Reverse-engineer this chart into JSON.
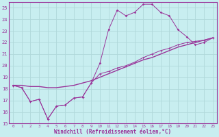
{
  "xlabel": "Windchill (Refroidissement éolien,°C)",
  "bg_color": "#c8eef0",
  "grid_color": "#b0d8da",
  "line_color": "#993399",
  "xlim": [
    -0.5,
    23.5
  ],
  "ylim": [
    15,
    25.5
  ],
  "xticks": [
    0,
    1,
    2,
    3,
    4,
    5,
    6,
    7,
    8,
    9,
    10,
    11,
    12,
    13,
    14,
    15,
    16,
    17,
    18,
    19,
    20,
    21,
    22,
    23
  ],
  "yticks": [
    15,
    16,
    17,
    18,
    19,
    20,
    21,
    22,
    23,
    24,
    25
  ],
  "line1_x": [
    0,
    1,
    2,
    3,
    4,
    5,
    6,
    7,
    8,
    9,
    10,
    11,
    12,
    13,
    14,
    15,
    16,
    17,
    18,
    19,
    20,
    21,
    22,
    23
  ],
  "line1_y": [
    18.3,
    18.1,
    16.9,
    17.1,
    15.4,
    16.5,
    16.6,
    17.2,
    17.3,
    18.5,
    20.2,
    23.1,
    24.8,
    24.3,
    24.6,
    25.3,
    25.3,
    24.6,
    24.3,
    23.1,
    22.5,
    21.8,
    22.0,
    22.4
  ],
  "line2_x": [
    0,
    1,
    2,
    3,
    4,
    5,
    6,
    7,
    8,
    9,
    10,
    11,
    12,
    13,
    14,
    15,
    16,
    17,
    18,
    19,
    20,
    21,
    22,
    23
  ],
  "line2_y": [
    18.3,
    18.1,
    16.9,
    17.1,
    15.4,
    16.5,
    16.6,
    17.2,
    17.3,
    18.5,
    19.3,
    19.5,
    19.8,
    20.0,
    20.3,
    20.7,
    21.0,
    21.3,
    21.5,
    21.8,
    22.0,
    22.1,
    22.2,
    22.4
  ],
  "line3_x": [
    0,
    1,
    2,
    3,
    4,
    5,
    6,
    7,
    8,
    9,
    10,
    11,
    12,
    13,
    14,
    15,
    16,
    17,
    18,
    19,
    20,
    21,
    22,
    23
  ],
  "line3_y": [
    18.3,
    18.3,
    18.2,
    18.2,
    18.1,
    18.1,
    18.2,
    18.3,
    18.5,
    18.7,
    19.0,
    19.3,
    19.6,
    19.9,
    20.2,
    20.5,
    20.7,
    21.0,
    21.3,
    21.6,
    21.8,
    22.0,
    22.2,
    22.4
  ]
}
